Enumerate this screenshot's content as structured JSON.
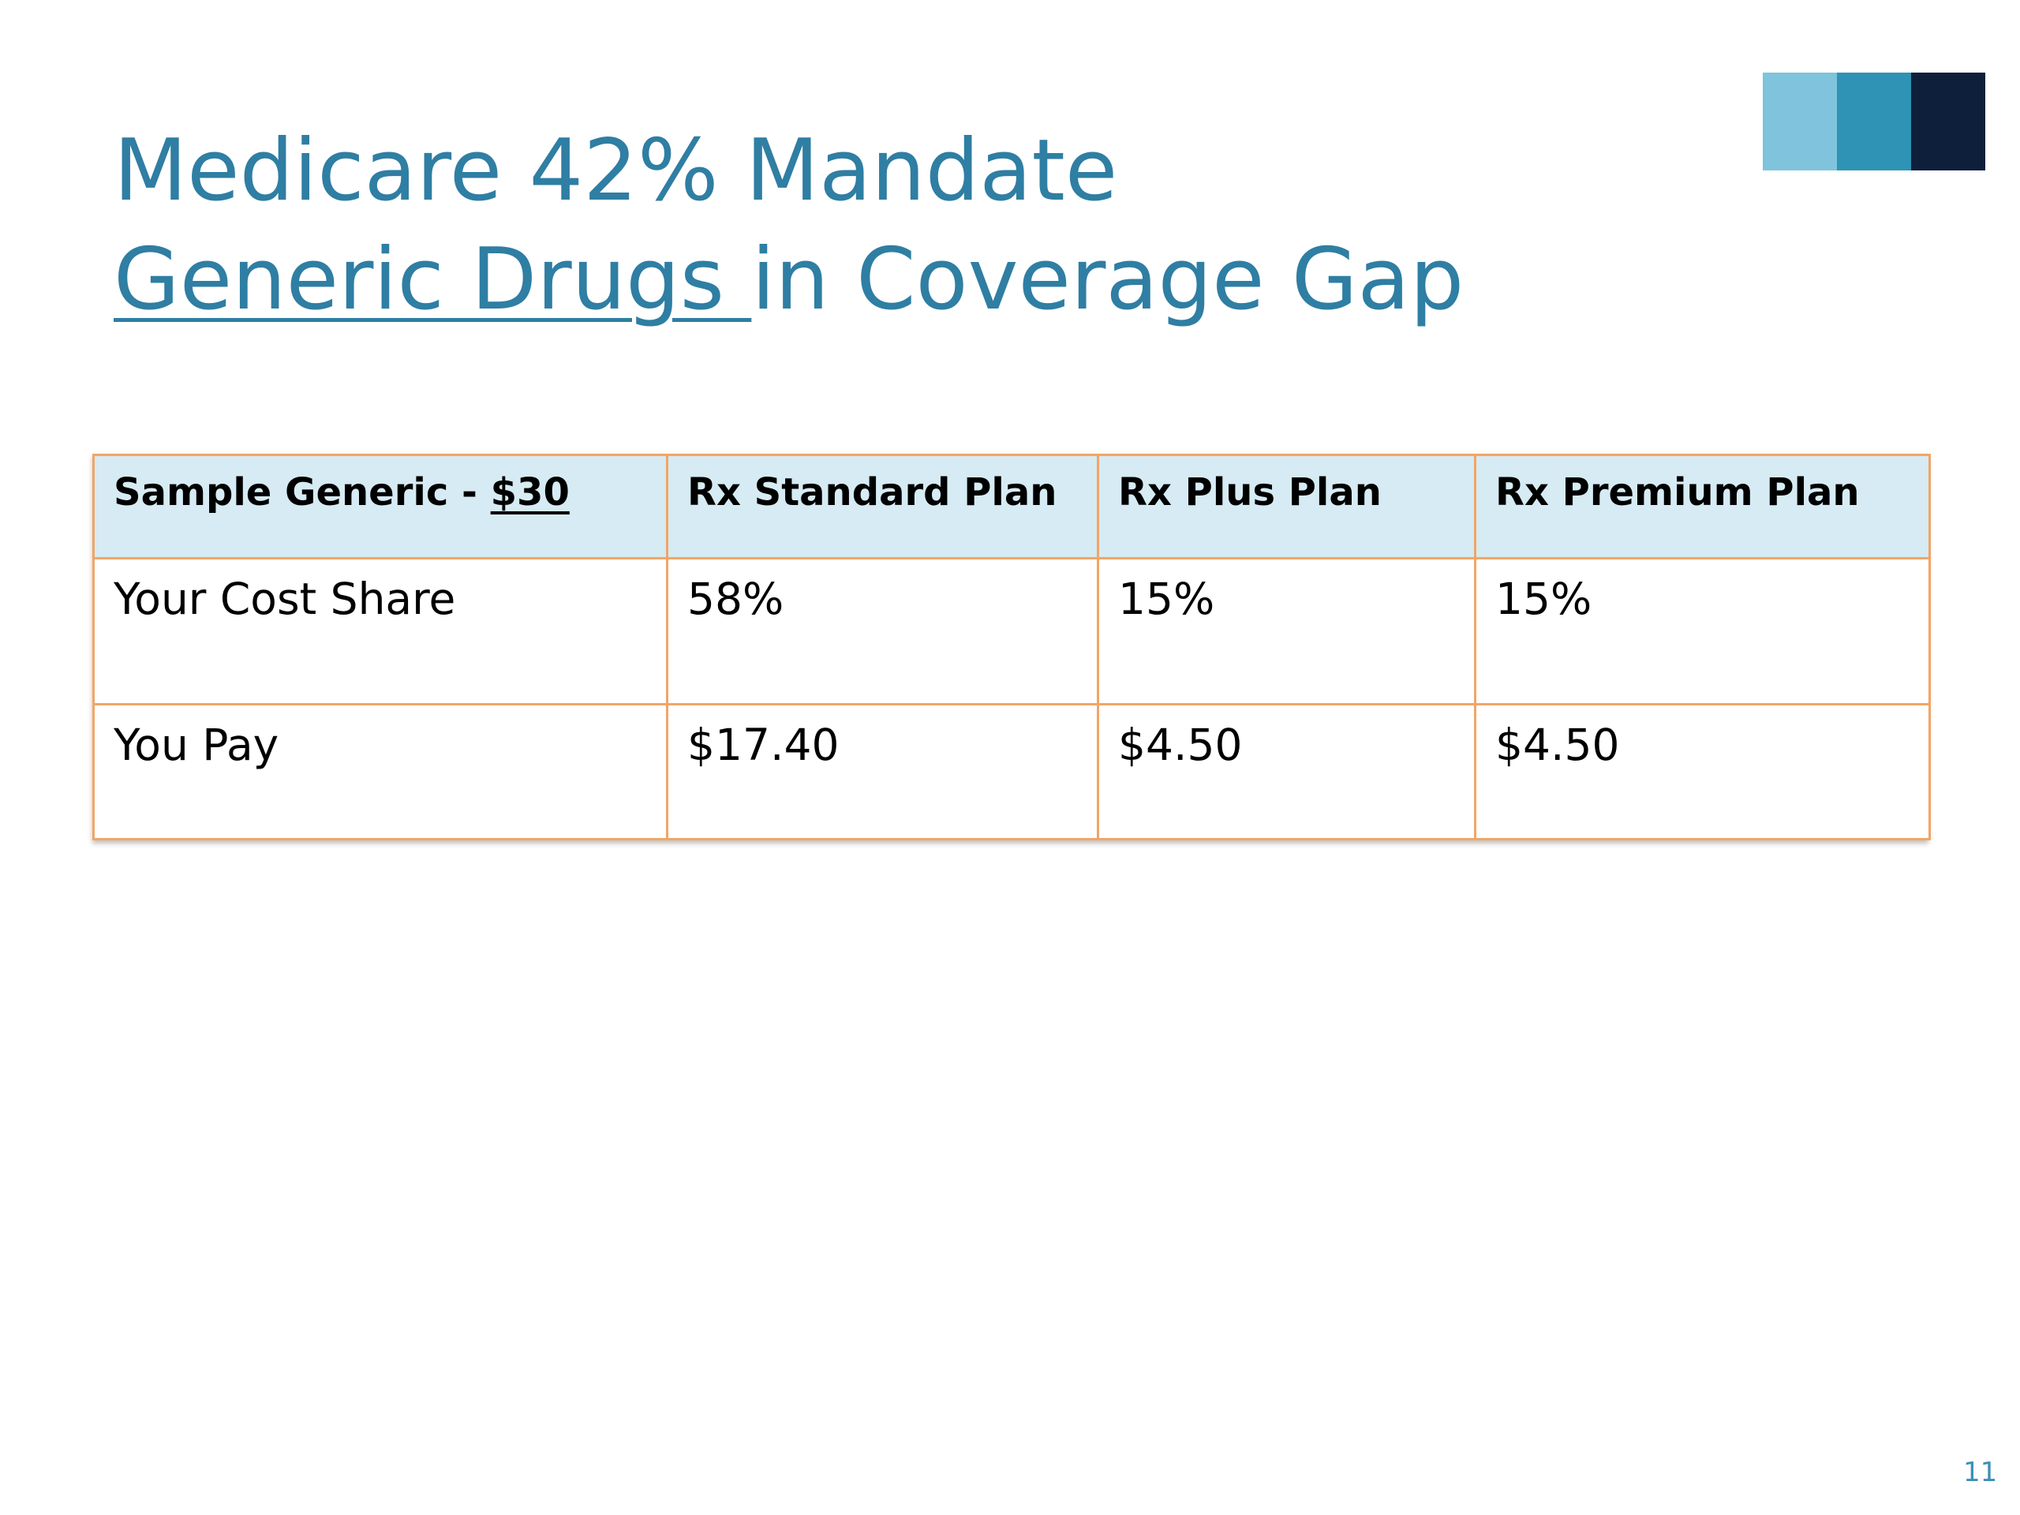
{
  "slide": {
    "title_line1": "Medicare 42% Mandate",
    "title_line2_underlined": "Generic Drugs ",
    "title_line2_rest": "in Coverage Gap",
    "page_number": "11"
  },
  "accent_blocks": [
    {
      "color": "#7fc4dc"
    },
    {
      "color": "#2e93b5"
    },
    {
      "color": "#0e1f3b"
    }
  ],
  "colors": {
    "title": "#2f7ea3",
    "table_border": "#f2a566",
    "header_fill": "#d6ebf3"
  },
  "table": {
    "header": {
      "col1_prefix": "Sample Generic - ",
      "col1_amount": "$30",
      "col2": "Rx Standard Plan",
      "col3": "Rx Plus Plan",
      "col4": "Rx Premium Plan"
    },
    "rows": [
      [
        "Your Cost Share",
        "58%",
        "15%",
        "15%"
      ],
      [
        "You Pay",
        "$17.40",
        "$4.50",
        "$4.50"
      ]
    ]
  }
}
